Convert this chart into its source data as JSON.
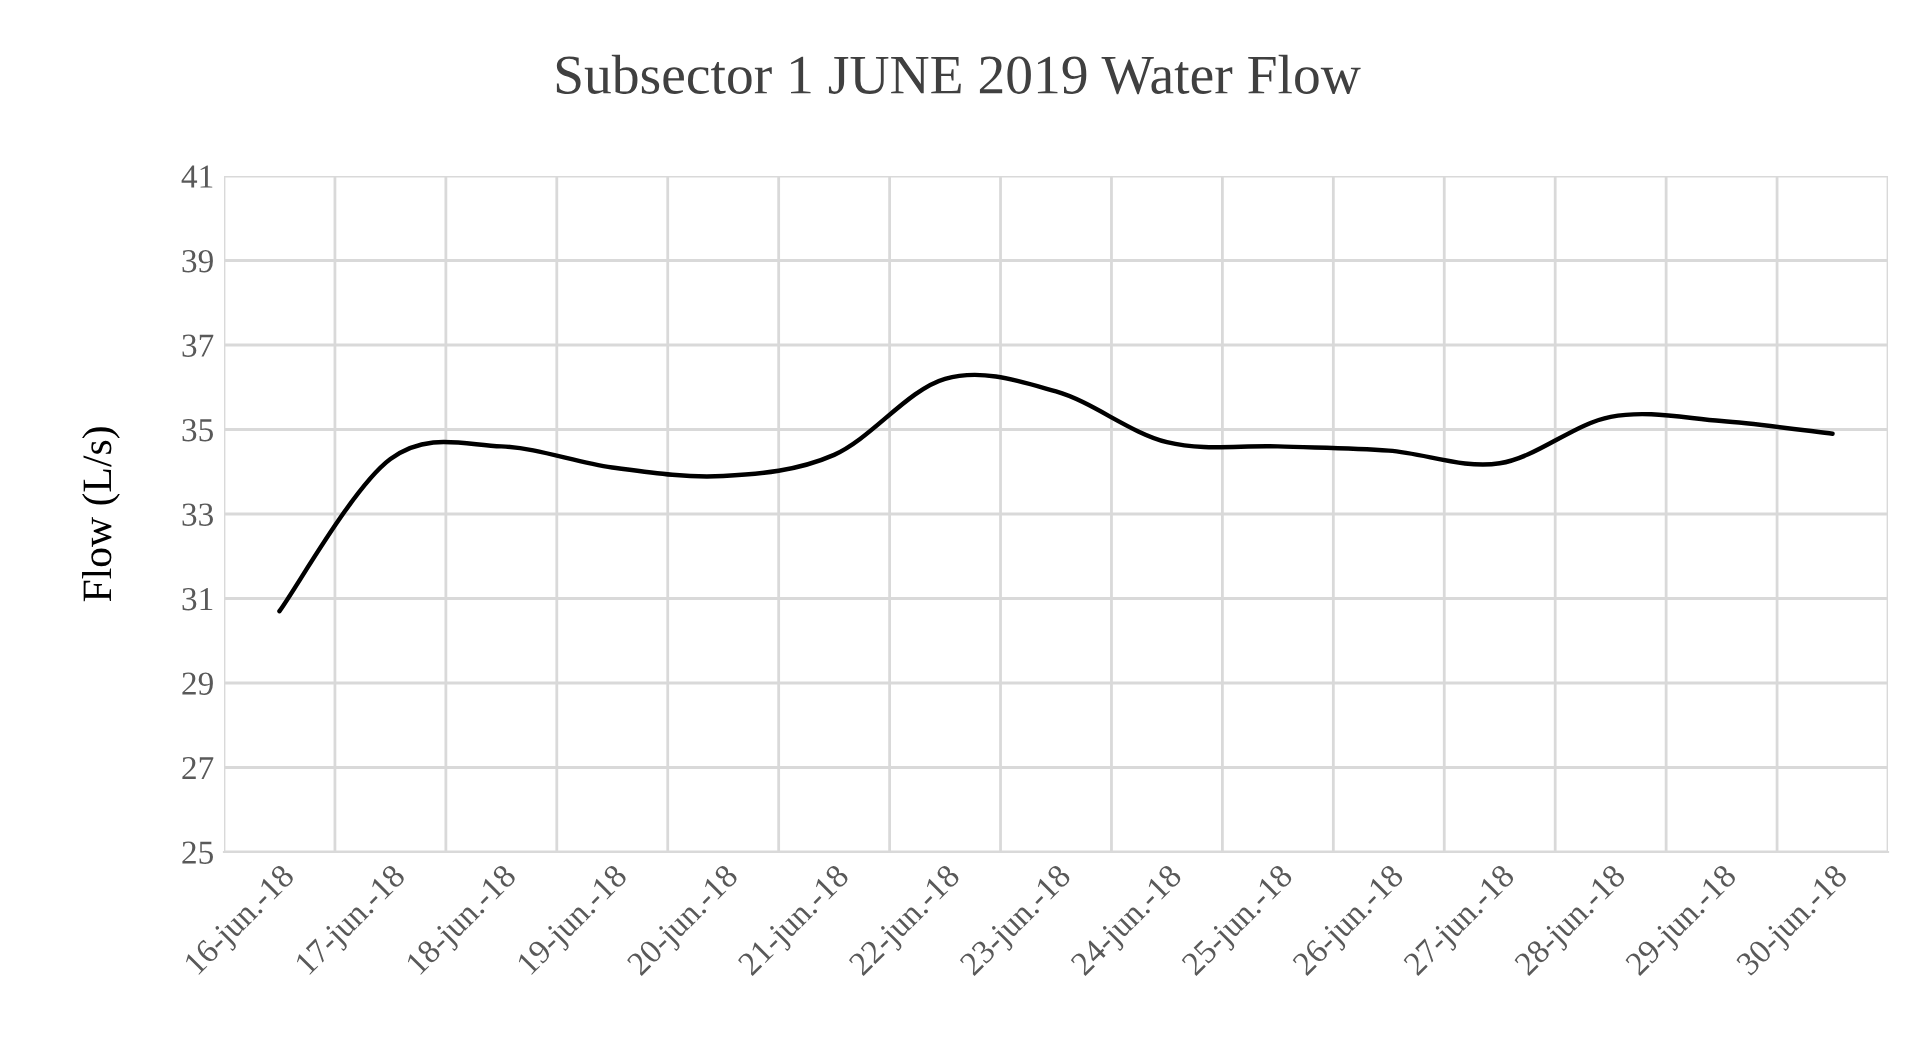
{
  "chart_data": {
    "type": "line",
    "title": "Subsector 1 JUNE 2019 Water Flow",
    "ylabel": "Flow (L/s)",
    "categories": [
      "16-jun.-18",
      "17-jun.-18",
      "18-jun.-18",
      "19-jun.-18",
      "20-jun.-18",
      "21-jun.-18",
      "22-jun.-18",
      "23-jun.-18",
      "24-jun.-18",
      "25-jun.-18",
      "26-jun.-18",
      "27-jun.-18",
      "28-jun.-18",
      "29-jun.-18",
      "30-jun.-18"
    ],
    "series": [
      {
        "color": "#000000",
        "values": [
          30.7,
          34.3,
          34.6,
          34.1,
          33.9,
          34.4,
          36.2,
          35.9,
          34.7,
          34.6,
          34.5,
          34.2,
          35.3,
          35.2,
          34.9
        ]
      }
    ],
    "ylim": [
      25,
      41
    ],
    "yticks": [
      25,
      27,
      29,
      31,
      33,
      35,
      37,
      39,
      41
    ],
    "grid": true,
    "marker": "none",
    "line_style": "solid"
  }
}
